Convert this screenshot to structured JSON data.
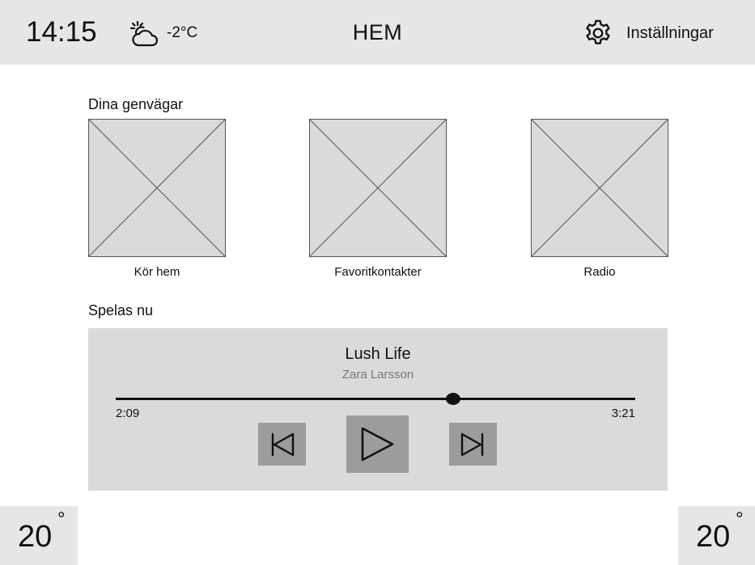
{
  "header": {
    "time": "14:15",
    "weather_icon": "partly-cloudy-icon",
    "outside_temp": "-2°C",
    "title": "HEM",
    "settings_icon": "gear-icon",
    "settings_label": "Inställningar"
  },
  "shortcuts": {
    "label": "Dina genvägar",
    "items": [
      {
        "label": "Kör hem"
      },
      {
        "label": "Favoritkontakter"
      },
      {
        "label": "Radio"
      }
    ]
  },
  "now_playing": {
    "label": "Spelas nu",
    "track": "Lush Life",
    "artist": "Zara Larsson",
    "elapsed": "2:09",
    "total": "3:21",
    "progress": 0.65,
    "controls": {
      "prev_icon": "skip-previous-icon",
      "play_icon": "play-icon",
      "next_icon": "skip-next-icon"
    }
  },
  "climate": {
    "left": {
      "value": "20",
      "unit": "°"
    },
    "right": {
      "value": "20",
      "unit": "°"
    }
  },
  "colors": {
    "header_bg": "#e6e6e6",
    "player_bg": "#dadada",
    "control_bg": "#9c9c9c"
  }
}
